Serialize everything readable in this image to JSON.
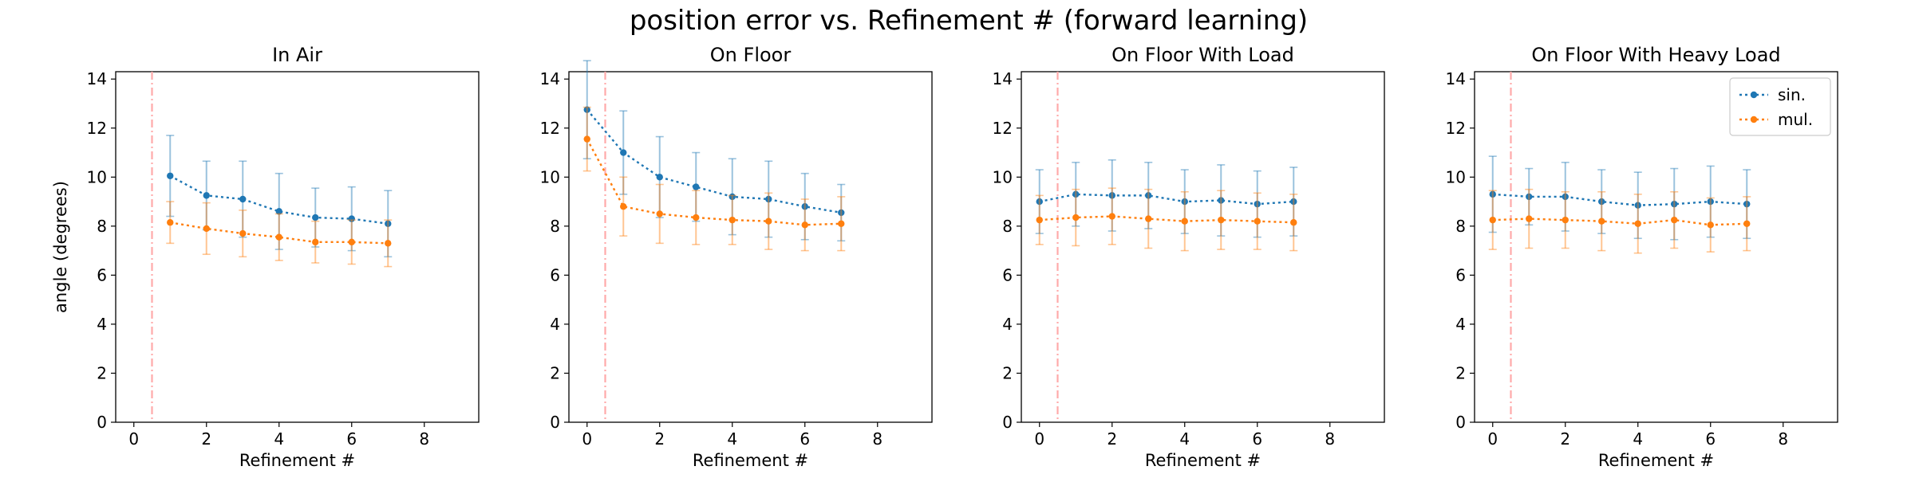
{
  "suptitle": "position error vs. Refinement # (forward learning)",
  "legend": [
    {
      "label": "sin.",
      "color": "#1f77b4"
    },
    {
      "label": "mul.",
      "color": "#ff7f0e"
    }
  ],
  "refline_color": "#ffaaaa",
  "chart_data": [
    {
      "type": "line",
      "title": "In Air",
      "xlabel": "Refinement #",
      "ylabel": "angle (degrees)",
      "xlim": [
        -0.5,
        9.5
      ],
      "ylim": [
        0,
        14.3
      ],
      "xticks": [
        0,
        2,
        4,
        6,
        8
      ],
      "yticks": [
        0,
        2,
        4,
        6,
        8,
        10,
        12,
        14
      ],
      "vline_x": 0.5,
      "legend": null,
      "series": [
        {
          "name": "sin.",
          "color": "#1f77b4",
          "x": [
            1,
            2,
            3,
            4,
            5,
            6,
            7
          ],
          "y": [
            10.05,
            9.25,
            9.1,
            8.6,
            8.35,
            8.3,
            8.1
          ],
          "err": [
            1.65,
            1.4,
            1.55,
            1.55,
            1.2,
            1.3,
            1.35
          ]
        },
        {
          "name": "mul.",
          "color": "#ff7f0e",
          "x": [
            1,
            2,
            3,
            4,
            5,
            6,
            7
          ],
          "y": [
            8.15,
            7.9,
            7.7,
            7.55,
            7.35,
            7.35,
            7.3
          ],
          "err": [
            0.85,
            1.05,
            0.95,
            0.95,
            0.85,
            0.9,
            0.95
          ]
        }
      ]
    },
    {
      "type": "line",
      "title": "On Floor",
      "xlabel": "Refinement #",
      "ylabel": "",
      "xlim": [
        -0.5,
        9.5
      ],
      "ylim": [
        0,
        14.3
      ],
      "xticks": [
        0,
        2,
        4,
        6,
        8
      ],
      "yticks": [
        0,
        2,
        4,
        6,
        8,
        10,
        12,
        14
      ],
      "vline_x": 0.5,
      "legend": null,
      "series": [
        {
          "name": "sin.",
          "color": "#1f77b4",
          "x": [
            0,
            1,
            2,
            3,
            4,
            5,
            6,
            7
          ],
          "y": [
            12.75,
            11.0,
            10.0,
            9.6,
            9.2,
            9.1,
            8.8,
            8.55
          ],
          "err": [
            2.0,
            1.7,
            1.65,
            1.4,
            1.55,
            1.55,
            1.35,
            1.15
          ]
        },
        {
          "name": "mul.",
          "color": "#ff7f0e",
          "x": [
            0,
            1,
            2,
            3,
            4,
            5,
            6,
            7
          ],
          "y": [
            11.55,
            8.8,
            8.5,
            8.35,
            8.25,
            8.2,
            8.05,
            8.1
          ],
          "err": [
            1.3,
            1.2,
            1.2,
            1.1,
            1.0,
            1.15,
            1.05,
            1.1
          ]
        }
      ]
    },
    {
      "type": "line",
      "title": "On Floor With Load",
      "xlabel": "Refinement #",
      "ylabel": "",
      "xlim": [
        -0.5,
        9.5
      ],
      "ylim": [
        0,
        14.3
      ],
      "xticks": [
        0,
        2,
        4,
        6,
        8
      ],
      "yticks": [
        0,
        2,
        4,
        6,
        8,
        10,
        12,
        14
      ],
      "vline_x": 0.5,
      "legend": null,
      "series": [
        {
          "name": "sin.",
          "color": "#1f77b4",
          "x": [
            0,
            1,
            2,
            3,
            4,
            5,
            6,
            7
          ],
          "y": [
            9.0,
            9.3,
            9.25,
            9.25,
            9.0,
            9.05,
            8.9,
            9.0
          ],
          "err": [
            1.3,
            1.3,
            1.45,
            1.35,
            1.3,
            1.45,
            1.35,
            1.4
          ]
        },
        {
          "name": "mul.",
          "color": "#ff7f0e",
          "x": [
            0,
            1,
            2,
            3,
            4,
            5,
            6,
            7
          ],
          "y": [
            8.25,
            8.35,
            8.4,
            8.3,
            8.2,
            8.25,
            8.2,
            8.15
          ],
          "err": [
            1.0,
            1.15,
            1.15,
            1.2,
            1.2,
            1.2,
            1.15,
            1.15
          ]
        }
      ]
    },
    {
      "type": "line",
      "title": "On Floor With Heavy Load",
      "xlabel": "Refinement #",
      "ylabel": "",
      "xlim": [
        -0.5,
        9.5
      ],
      "ylim": [
        0,
        14.3
      ],
      "xticks": [
        0,
        2,
        4,
        6,
        8
      ],
      "yticks": [
        0,
        2,
        4,
        6,
        8,
        10,
        12,
        14
      ],
      "vline_x": 0.5,
      "legend": "upper right",
      "series": [
        {
          "name": "sin.",
          "color": "#1f77b4",
          "x": [
            0,
            1,
            2,
            3,
            4,
            5,
            6,
            7
          ],
          "y": [
            9.3,
            9.2,
            9.2,
            9.0,
            8.85,
            8.9,
            9.0,
            8.9
          ],
          "err": [
            1.55,
            1.15,
            1.4,
            1.3,
            1.35,
            1.45,
            1.45,
            1.4
          ]
        },
        {
          "name": "mul.",
          "color": "#ff7f0e",
          "x": [
            0,
            1,
            2,
            3,
            4,
            5,
            6,
            7
          ],
          "y": [
            8.25,
            8.3,
            8.25,
            8.2,
            8.1,
            8.25,
            8.05,
            8.1
          ],
          "err": [
            1.2,
            1.2,
            1.15,
            1.2,
            1.2,
            1.15,
            1.1,
            1.1
          ]
        }
      ]
    }
  ]
}
